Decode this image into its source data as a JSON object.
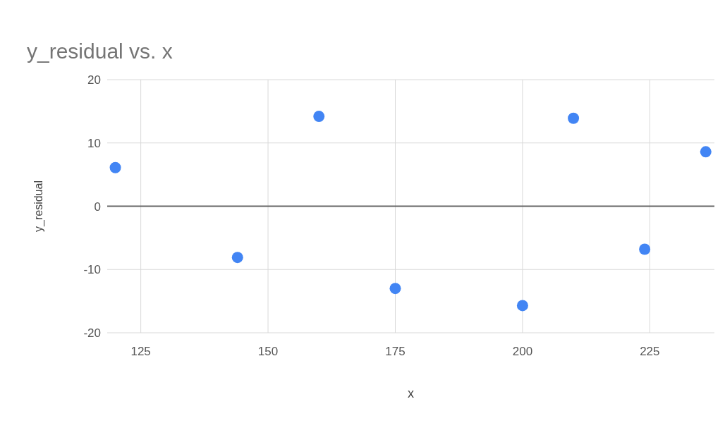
{
  "chart_data": {
    "type": "scatter",
    "title": "y_residual vs. x",
    "xlabel": "x",
    "ylabel": "y_residual",
    "x": [
      120,
      144,
      160,
      175,
      200,
      210,
      224,
      236
    ],
    "values": [
      6.1,
      -8.1,
      14.2,
      -13,
      -15.7,
      13.9,
      -6.8,
      8.6
    ],
    "color": "#4285f4",
    "marker": "circle",
    "xlim": [
      118.4,
      237.7
    ],
    "xticks": [
      125,
      150,
      175,
      200,
      225
    ],
    "ylim": [
      -20,
      20
    ],
    "yticks": [
      -20,
      -10,
      0,
      10,
      20
    ],
    "grid": true,
    "ref_lines": [
      {
        "axis": "y",
        "value": 0,
        "color": "#666666"
      }
    ]
  }
}
